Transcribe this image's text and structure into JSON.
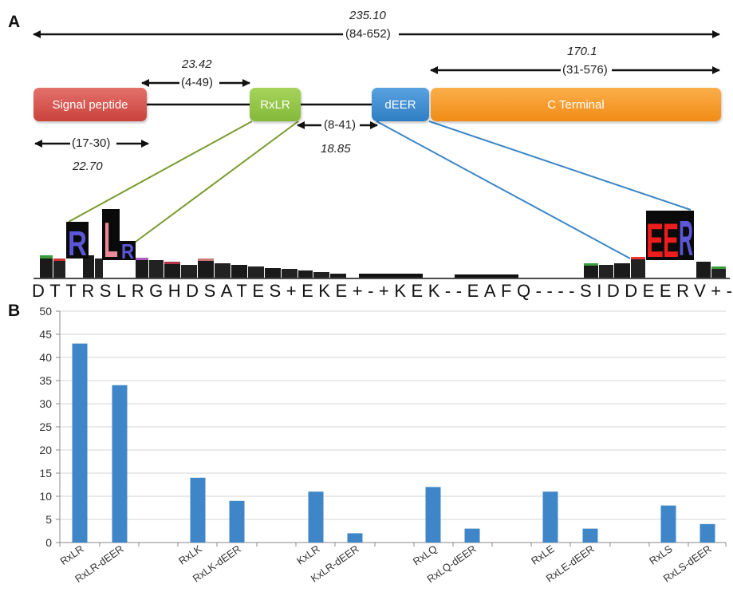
{
  "panel_a": {
    "letter": "A",
    "total_length": {
      "mean": "235.10",
      "range": "(84-652)"
    },
    "rxlr_gap": {
      "mean": "23.42",
      "range": "(4-49)"
    },
    "cterm_length": {
      "mean": "170.1",
      "range": "(31-576)"
    },
    "signal_length": {
      "range": "(17-30)",
      "mean": "22.70"
    },
    "rxlr_deer_gap": {
      "range": "(8-41)",
      "mean": "18.85"
    },
    "domains": {
      "signal": "Signal peptide",
      "rxlr": "RxLR",
      "deer": "dEER",
      "cterm": "C Terminal"
    },
    "colors": {
      "signal": "#d9534f",
      "rxlr": "#8dc63f",
      "deer": "#3d8fd1",
      "cterm": "#f7941d",
      "rxlr_link": "#7a9a2e",
      "deer_link": "#3b86c6"
    },
    "logo_sequence": "DTTRSLRGHDSATES+EKE+-+KEK--EAFQ----SIDDEERV+-",
    "logo_big_letters": [
      "R",
      "L",
      "R",
      "E",
      "E",
      "R"
    ]
  },
  "chart_data": {
    "type": "bar",
    "panel_letter": "B",
    "categories": [
      "RxLR",
      "RxLR-dEER",
      "RxLK",
      "RxLK-dEER",
      "KxLR",
      "KxLR-dEER",
      "RxLQ",
      "RxLQ-dEER",
      "RxLE",
      "RxLE-dEER",
      "RxLS",
      "RxLS-dEER"
    ],
    "values": [
      43,
      34,
      14,
      9,
      11,
      2,
      12,
      3,
      11,
      3,
      8,
      4
    ],
    "ylim": [
      0,
      50
    ],
    "yticks": [
      "0",
      "5",
      "10",
      "15",
      "20",
      "25",
      "30",
      "35",
      "40",
      "45",
      "50"
    ],
    "grid": true,
    "bar_color": "#3f86c8",
    "title": "",
    "xlabel": "",
    "ylabel": ""
  }
}
